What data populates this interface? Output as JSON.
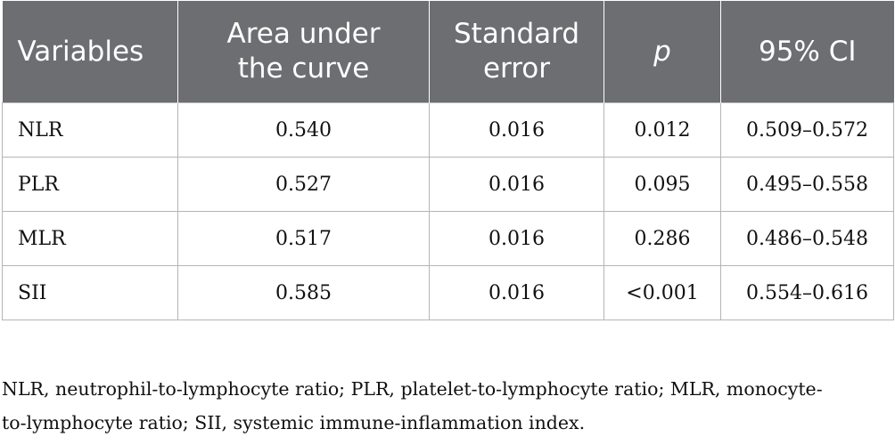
{
  "table": {
    "headers": [
      {
        "line1": "Variables",
        "line2": ""
      },
      {
        "line1": "Area under",
        "line2": "the curve"
      },
      {
        "line1": "Standard",
        "line2": "error"
      },
      {
        "line1": "p",
        "line2": ""
      },
      {
        "line1": "95% CI",
        "line2": ""
      }
    ],
    "rows": [
      {
        "variable": "NLR",
        "auc": "0.540",
        "se": "0.016",
        "p": "0.012",
        "ci": "0.509–0.572"
      },
      {
        "variable": "PLR",
        "auc": "0.527",
        "se": "0.016",
        "p": "0.095",
        "ci": "0.495–0.558"
      },
      {
        "variable": "MLR",
        "auc": "0.517",
        "se": "0.016",
        "p": "0.286",
        "ci": "0.486–0.548"
      },
      {
        "variable": "SII",
        "auc": "0.585",
        "se": "0.016",
        "p": "<0.001",
        "ci": "0.554–0.616"
      }
    ]
  },
  "footnote": {
    "line1": "NLR, neutrophil-to-lymphocyte ratio; PLR, platelet-to-lymphocyte ratio; MLR, monocyte-",
    "line2": "to-lymphocyte ratio; SII, systemic immune-inflammation index."
  },
  "colors": {
    "header_bg": "#6d6e71",
    "header_text": "#ffffff",
    "grid": "#b5b5b5"
  }
}
